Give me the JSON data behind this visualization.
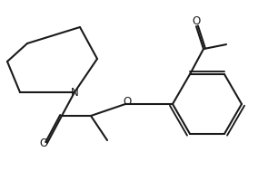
{
  "figsize": [
    3.06,
    1.89
  ],
  "dpi": 100,
  "bg_color": "#ffffff",
  "line_color": "#1a1a1a",
  "line_width": 1.5,
  "atom_labels": {
    "N": "N",
    "O_ether": "O",
    "O_carbonyl1": "O",
    "O_carbonyl2": "O"
  }
}
